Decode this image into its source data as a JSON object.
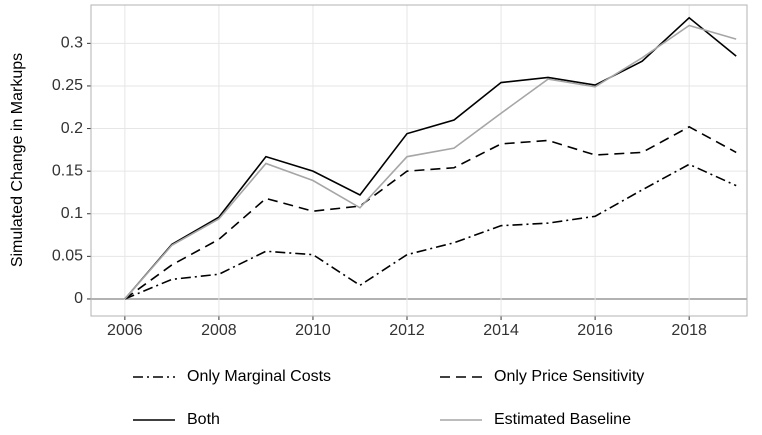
{
  "chart_data": {
    "type": "line",
    "y_label": "Simulated Change in Markups",
    "x": [
      2006,
      2007,
      2008,
      2009,
      2010,
      2011,
      2012,
      2013,
      2014,
      2015,
      2016,
      2017,
      2018,
      2019
    ],
    "series": [
      {
        "name": "Only Marginal Costs",
        "color": "#000000",
        "dash": "dashdot",
        "values": [
          0,
          0.023,
          0.029,
          0.056,
          0.052,
          0.016,
          0.052,
          0.066,
          0.086,
          0.089,
          0.097,
          0.128,
          0.158,
          0.133
        ]
      },
      {
        "name": "Only Price Sensitivity",
        "color": "#000000",
        "dash": "dashed",
        "values": [
          0,
          0.04,
          0.07,
          0.118,
          0.103,
          0.109,
          0.15,
          0.154,
          0.182,
          0.186,
          0.169,
          0.172,
          0.202,
          0.172
        ]
      },
      {
        "name": "Both",
        "color": "#000000",
        "dash": "solid",
        "values": [
          0,
          0.064,
          0.096,
          0.167,
          0.15,
          0.122,
          0.194,
          0.21,
          0.254,
          0.26,
          0.251,
          0.279,
          0.33,
          0.285
        ]
      },
      {
        "name": "Estimated Baseline",
        "color": "#a6a6a6",
        "dash": "solid",
        "values": [
          0,
          0.063,
          0.094,
          0.159,
          0.139,
          0.107,
          0.167,
          0.177,
          0.218,
          0.258,
          0.249,
          0.283,
          0.321,
          0.305
        ]
      }
    ],
    "xlim": [
      2005.28,
      2019.23
    ],
    "xticks": [
      2006,
      2008,
      2010,
      2012,
      2014,
      2016,
      2018
    ],
    "ylim": [
      -0.02,
      0.345
    ],
    "yticks": [
      0,
      0.05,
      0.1,
      0.15,
      0.2,
      0.25,
      0.3
    ],
    "grid": true,
    "legend": "bottom"
  }
}
